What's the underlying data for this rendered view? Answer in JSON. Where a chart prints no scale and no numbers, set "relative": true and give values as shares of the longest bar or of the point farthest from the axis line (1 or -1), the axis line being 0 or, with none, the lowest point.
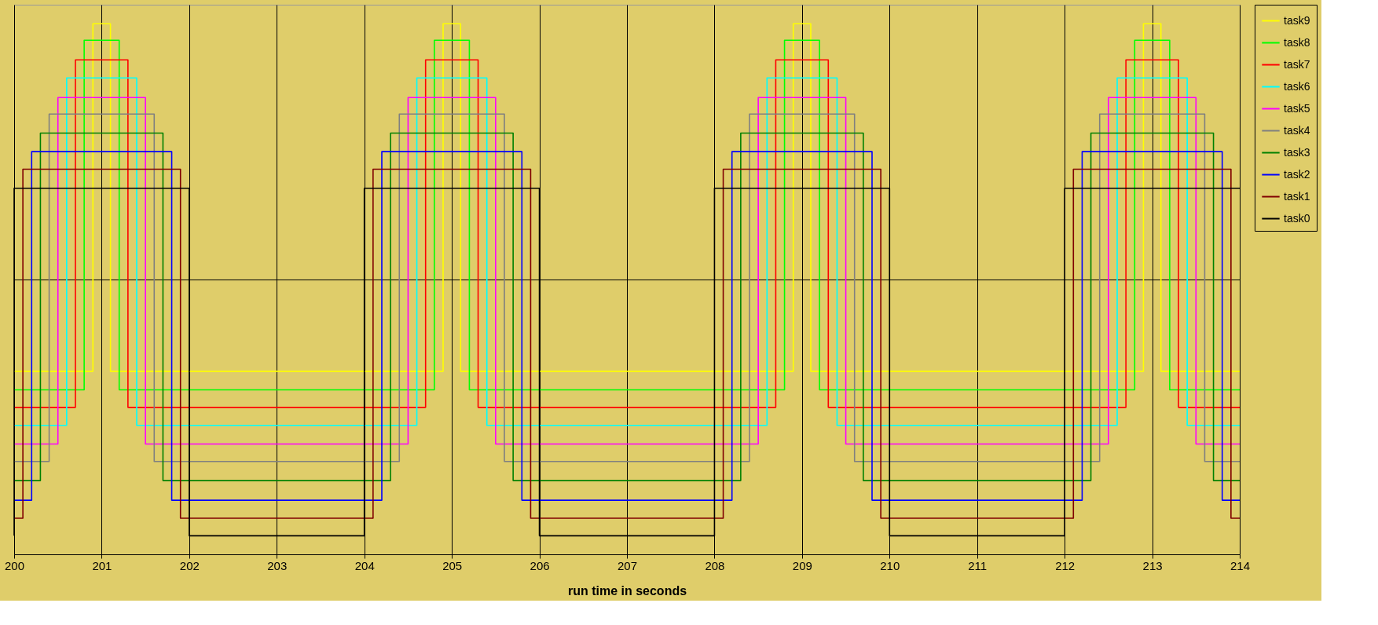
{
  "chart_data": {
    "type": "step",
    "xlabel": "run time in seconds",
    "relative": true,
    "xlim": [
      200,
      214
    ],
    "xticks": [
      200,
      201,
      202,
      203,
      204,
      205,
      206,
      207,
      208,
      209,
      210,
      211,
      212,
      213,
      214
    ],
    "grid": true,
    "legend": "right",
    "marker": "none",
    "line_style": "solid",
    "series": [
      {
        "name": "task9",
        "color": "#ffff00",
        "x": [
          200,
          200.9,
          201.1,
          204.9,
          205.1,
          208.9,
          209.1,
          212.9,
          213.1,
          214
        ],
        "values": [
          0.345,
          1.0,
          0.345,
          1.0,
          0.345,
          1.0,
          0.345,
          1.0,
          0.345,
          0.345
        ]
      },
      {
        "name": "task8",
        "color": "#00ff00",
        "x": [
          200,
          200.8,
          201.2,
          204.8,
          205.2,
          208.8,
          209.2,
          212.8,
          213.2,
          214
        ],
        "values": [
          0.31,
          0.969,
          0.31,
          0.969,
          0.31,
          0.969,
          0.31,
          0.969,
          0.31,
          0.31
        ]
      },
      {
        "name": "task7",
        "color": "#ff0000",
        "x": [
          200,
          200.7,
          201.3,
          204.7,
          205.3,
          208.7,
          209.3,
          212.7,
          213.3,
          214
        ],
        "values": [
          0.277,
          0.932,
          0.277,
          0.932,
          0.277,
          0.932,
          0.277,
          0.932,
          0.277,
          0.277
        ]
      },
      {
        "name": "task6",
        "color": "#00ffff",
        "x": [
          200,
          200.6,
          201.4,
          204.6,
          205.4,
          208.6,
          209.4,
          212.6,
          213.4,
          214
        ],
        "values": [
          0.243,
          0.898,
          0.243,
          0.898,
          0.243,
          0.898,
          0.243,
          0.898,
          0.243,
          0.243
        ]
      },
      {
        "name": "task5",
        "color": "#ff00ff",
        "x": [
          200,
          200.5,
          201.5,
          204.5,
          205.5,
          208.5,
          209.5,
          212.5,
          213.5,
          214
        ],
        "values": [
          0.208,
          0.861,
          0.208,
          0.861,
          0.208,
          0.861,
          0.208,
          0.861,
          0.208,
          0.208
        ]
      },
      {
        "name": "task4",
        "color": "#808080",
        "x": [
          200,
          200.4,
          201.6,
          204.4,
          205.6,
          208.4,
          209.6,
          212.4,
          213.6,
          214
        ],
        "values": [
          0.175,
          0.83,
          0.175,
          0.83,
          0.175,
          0.83,
          0.175,
          0.83,
          0.175,
          0.175
        ]
      },
      {
        "name": "task3",
        "color": "#008000",
        "x": [
          200,
          200.3,
          201.7,
          204.3,
          205.7,
          208.3,
          209.7,
          212.3,
          213.7,
          214
        ],
        "values": [
          0.139,
          0.794,
          0.139,
          0.794,
          0.139,
          0.794,
          0.139,
          0.794,
          0.139,
          0.139
        ]
      },
      {
        "name": "task2",
        "color": "#0000ff",
        "x": [
          200,
          200.2,
          201.8,
          204.2,
          205.8,
          208.2,
          209.8,
          212.2,
          213.8,
          214
        ],
        "values": [
          0.102,
          0.759,
          0.102,
          0.759,
          0.102,
          0.759,
          0.102,
          0.759,
          0.102,
          0.102
        ]
      },
      {
        "name": "task1",
        "color": "#800000",
        "x": [
          200,
          200.1,
          201.9,
          204.1,
          205.9,
          208.1,
          209.9,
          212.1,
          213.9,
          214
        ],
        "values": [
          0.068,
          0.726,
          0.068,
          0.726,
          0.068,
          0.726,
          0.068,
          0.726,
          0.068,
          0.068
        ]
      },
      {
        "name": "task0",
        "color": "#000000",
        "x": [
          200,
          200,
          202,
          204,
          206,
          208,
          210,
          212,
          214
        ],
        "values": [
          0.035,
          0.69,
          0.035,
          0.69,
          0.035,
          0.69,
          0.035,
          0.69,
          0.69
        ]
      }
    ]
  }
}
